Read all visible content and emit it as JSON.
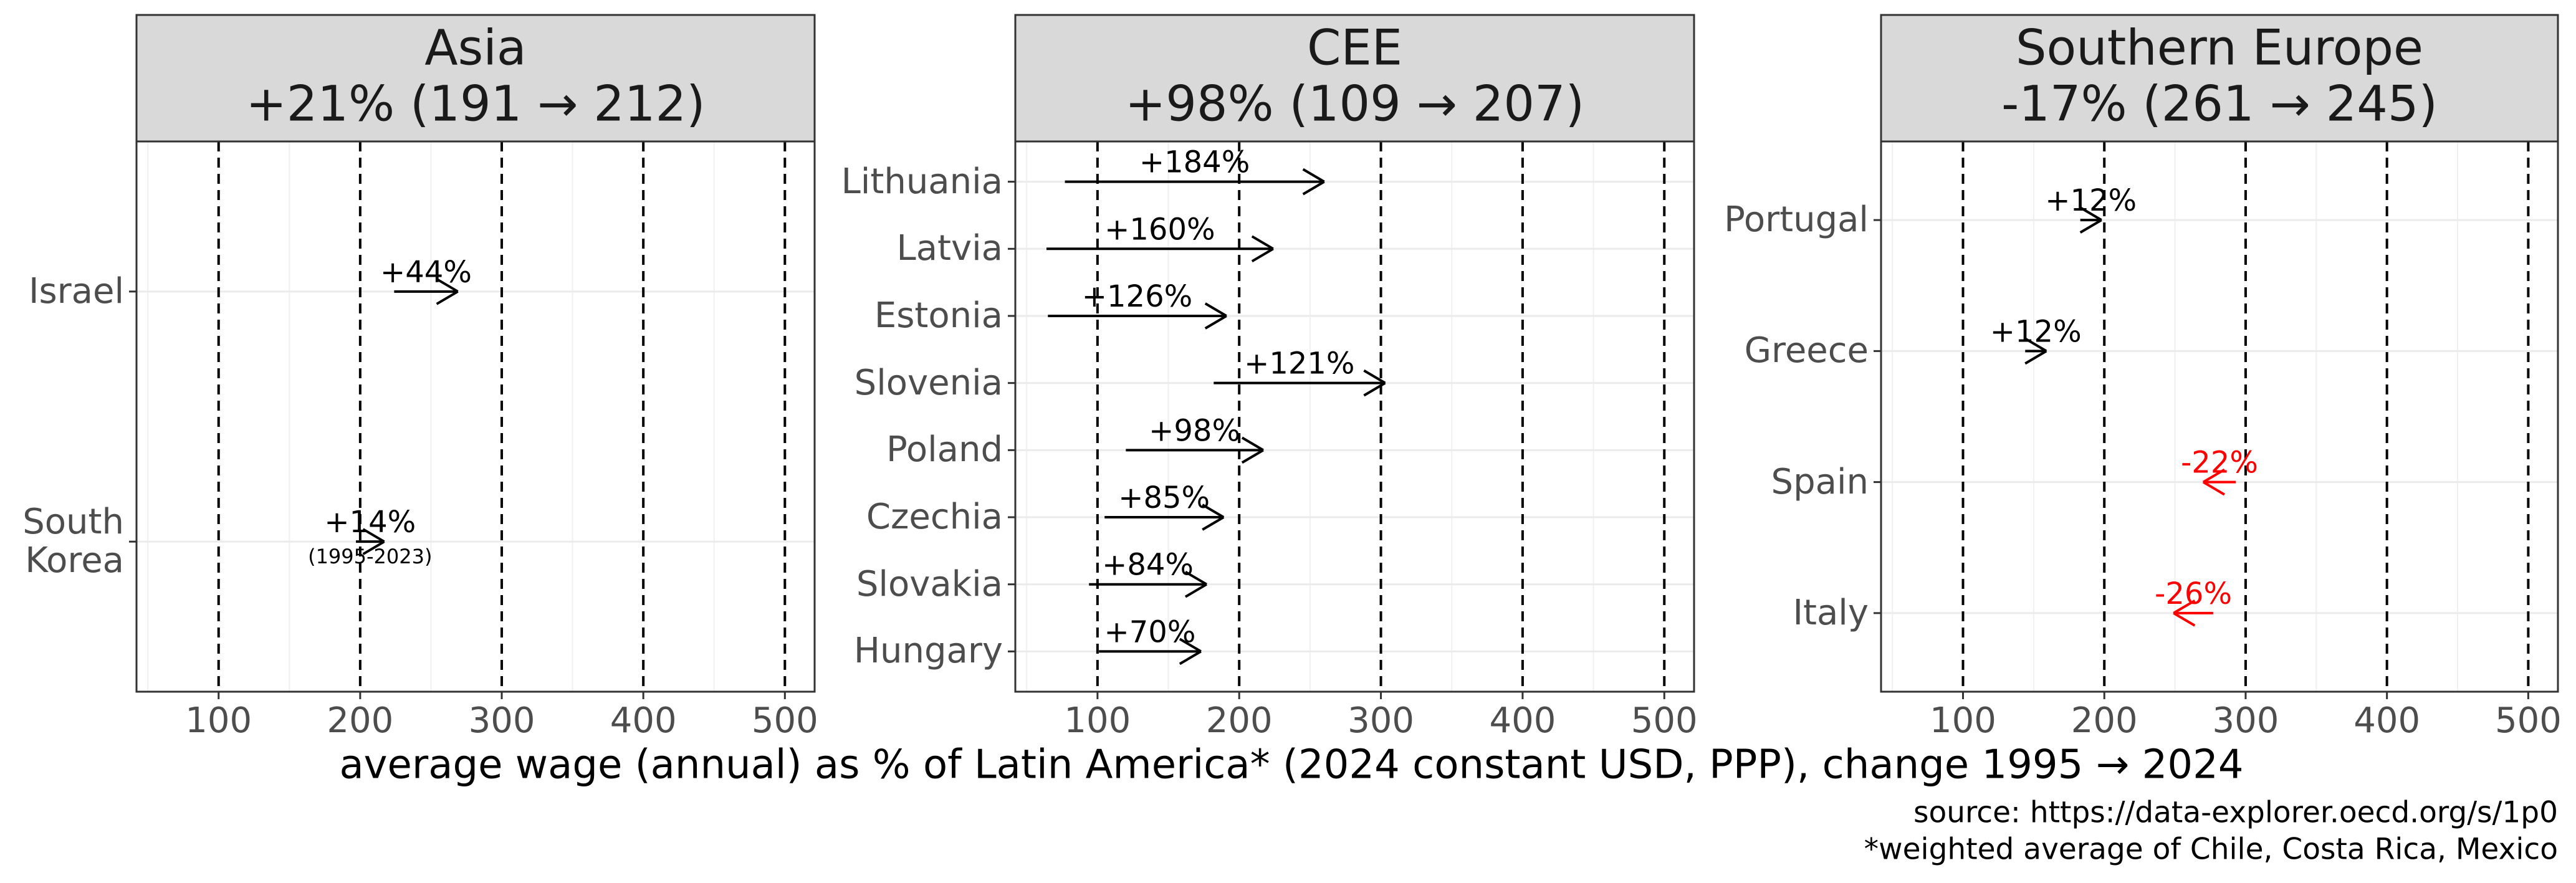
{
  "chart_data": [
    {
      "type": "arrow",
      "title": "Asia",
      "subtitle": "+21% (191 → 212)",
      "categories": [
        "Israel",
        "South\nKorea"
      ],
      "start": [
        224,
        197
      ],
      "end": [
        269,
        217
      ],
      "changes": [
        44,
        14
      ],
      "value_labels": [
        "+44%",
        "+14%"
      ],
      "colors": [
        "#000000",
        "#000000"
      ],
      "annotation": {
        "category": "South\nKorea",
        "text": "(1995-2023)"
      },
      "xlim": [
        42,
        521
      ],
      "xticks": [
        100,
        200,
        300,
        400,
        500
      ]
    },
    {
      "type": "arrow",
      "title": "CEE",
      "subtitle": "+98% (109 → 207)",
      "categories": [
        "Lithuania",
        "Latvia",
        "Estonia",
        "Slovenia",
        "Poland",
        "Czechia",
        "Slovakia",
        "Hungary"
      ],
      "start": [
        77,
        64,
        65,
        182,
        120,
        105,
        94,
        101
      ],
      "end": [
        260,
        224,
        191,
        303,
        217,
        189,
        177,
        173
      ],
      "changes": [
        184,
        160,
        126,
        121,
        98,
        85,
        84,
        70
      ],
      "value_labels": [
        "+184%",
        "+160%",
        "+126%",
        "+121%",
        "+98%",
        "+85%",
        "+84%",
        "+70%"
      ],
      "colors": [
        "#000000",
        "#000000",
        "#000000",
        "#000000",
        "#000000",
        "#000000",
        "#000000",
        "#000000"
      ],
      "xlim": [
        42,
        521
      ],
      "xticks": [
        100,
        200,
        300,
        400,
        500
      ]
    },
    {
      "type": "arrow",
      "title": "Southern Europe",
      "subtitle": "-17% (261 → 245)",
      "categories": [
        "Portugal",
        "Greece",
        "Spain",
        "Italy"
      ],
      "start": [
        183,
        144,
        293,
        277
      ],
      "end": [
        198,
        159,
        270,
        249
      ],
      "changes": [
        12,
        12,
        -22,
        -26
      ],
      "value_labels": [
        "+12%",
        "+12%",
        "-22%",
        "-26%"
      ],
      "colors": [
        "#000000",
        "#000000",
        "#ff0000",
        "#ff0000"
      ],
      "xlim": [
        42,
        521
      ],
      "xticks": [
        100,
        200,
        300,
        400,
        500
      ]
    }
  ],
  "x_label": "average wage (annual) as % of Latin America* (2024 constant USD, PPP), change 1995 → 2024",
  "source": "source: https://data-explorer.oecd.org/s/1p0",
  "footnote": "*weighted average of Chile, Costa Rica, Mexico"
}
